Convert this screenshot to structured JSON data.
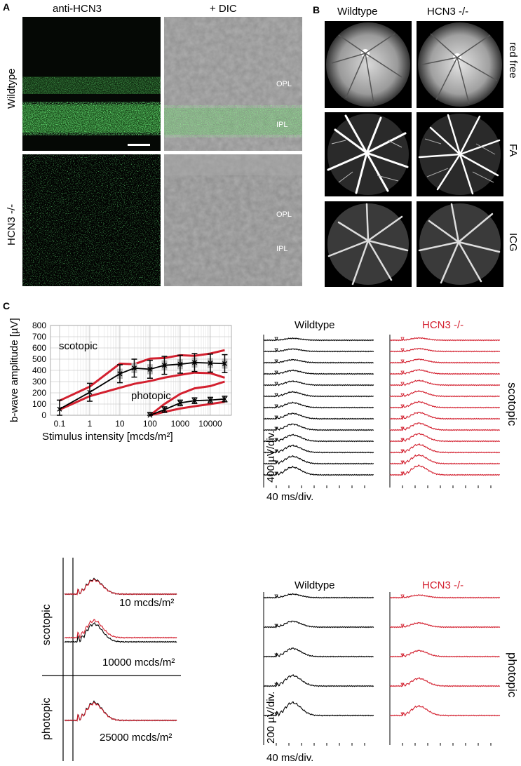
{
  "panels": {
    "a": "A",
    "b": "B",
    "c": "C"
  },
  "panel_a": {
    "col_titles": [
      "anti-HCN3",
      "+ DIC"
    ],
    "row_labels": [
      "Wildtype",
      "HCN3 -/-"
    ],
    "layer_labels": {
      "opl": "OPL",
      "ipl": "IPL"
    }
  },
  "panel_b": {
    "col_titles": [
      "Wildtype",
      "HCN3 -/-"
    ],
    "row_labels": [
      "red free",
      "FA",
      "ICG"
    ]
  },
  "panel_c": {
    "chart_data": {
      "type": "line",
      "xlabel": "Stimulus intensity [mcds/m²]",
      "ylabel": "b-wave amplitude [µV]",
      "x_scale": "log",
      "xlim": [
        0.05,
        50000
      ],
      "ylim": [
        0,
        800
      ],
      "x_ticks": [
        "0.1",
        "1",
        "10",
        "100",
        "1000",
        "10000"
      ],
      "y_ticks": [
        0,
        100,
        200,
        300,
        400,
        500,
        600,
        700,
        800
      ],
      "annotations": [
        "scotopic",
        "photopic"
      ],
      "series": [
        {
          "x": [
            0.1,
            1,
            10,
            30,
            100,
            300,
            1000,
            3000,
            10000,
            30000
          ],
          "values": [
            55,
            205,
            370,
            420,
            410,
            445,
            455,
            470,
            465,
            460
          ]
        },
        {
          "x": [
            100,
            300,
            1000,
            3000,
            10000,
            30000
          ],
          "values": [
            0,
            50,
            110,
            130,
            135,
            145
          ]
        }
      ],
      "bands": [
        {
          "upper": [
            130,
            255,
            460,
            455,
            505,
            510,
            535,
            530,
            550,
            580
          ],
          "lower": [
            50,
            170,
            245,
            280,
            305,
            335,
            360,
            380,
            375,
            335
          ]
        },
        {
          "upper": [
            0,
            100,
            190,
            240,
            260,
            300
          ],
          "lower": [
            0,
            30,
            60,
            80,
            100,
            120
          ]
        }
      ]
    },
    "trace_titles": {
      "wildtype": "Wildtype",
      "hcn3": "HCN3 -/-"
    },
    "scotopic_label": "scotopic",
    "photopic_label": "photopic",
    "scale_400": "400 µV/div.",
    "scale_200": "200 µV/div.",
    "scale_ms_top": "40 ms/div.",
    "scale_ms_bottom": "40 ms/div.",
    "overlay_labels": [
      "10 mcds/m²",
      "10000 mcds/m²",
      "25000 mcds/m²"
    ],
    "overlay_row_labels": [
      "scotopic",
      "photopic"
    ],
    "colors": {
      "wildtype": "#000000",
      "hcn3": "#d3202f"
    }
  }
}
